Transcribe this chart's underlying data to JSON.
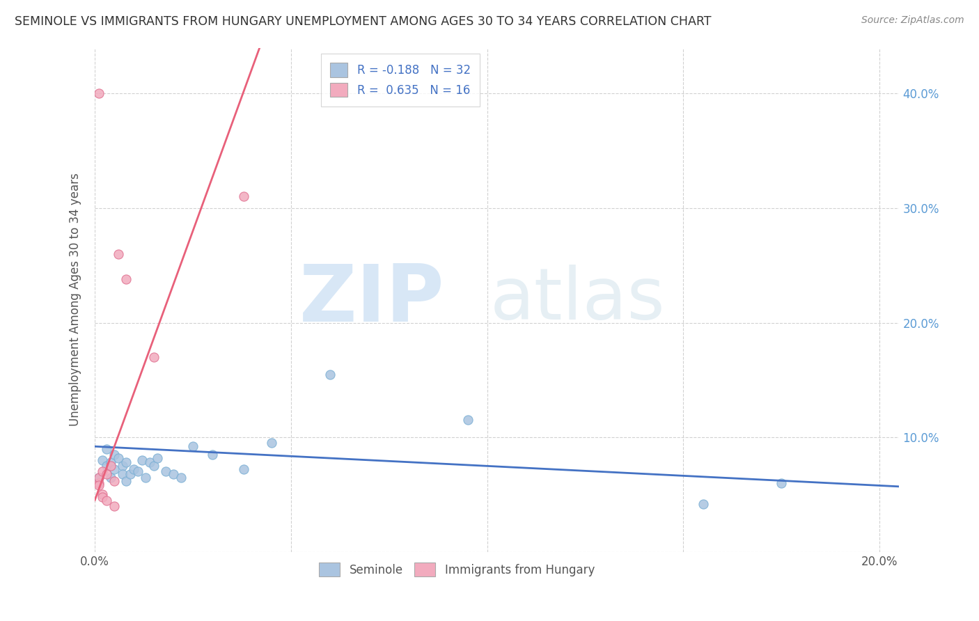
{
  "title": "SEMINOLE VS IMMIGRANTS FROM HUNGARY UNEMPLOYMENT AMONG AGES 30 TO 34 YEARS CORRELATION CHART",
  "source": "Source: ZipAtlas.com",
  "ylabel": "Unemployment Among Ages 30 to 34 years",
  "xlim": [
    0.0,
    0.205
  ],
  "ylim": [
    0.0,
    0.44
  ],
  "xticks": [
    0.0,
    0.05,
    0.1,
    0.15,
    0.2
  ],
  "yticks": [
    0.0,
    0.1,
    0.2,
    0.3,
    0.4
  ],
  "seminole_color": "#aac4e0",
  "hungary_color": "#f2abbe",
  "seminole_edge": "#7aafd4",
  "hungary_edge": "#e07090",
  "trend_blue": "#4472c4",
  "trend_pink": "#e8607a",
  "legend_r1": "R = -0.188",
  "legend_n1": "N = 32",
  "legend_r2": "R =  0.635",
  "legend_n2": "N = 16",
  "watermark_zip": "ZIP",
  "watermark_atlas": "atlas",
  "background": "#ffffff",
  "grid_color": "#cccccc",
  "seminole_x": [
    0.001,
    0.002,
    0.003,
    0.003,
    0.004,
    0.004,
    0.005,
    0.005,
    0.006,
    0.007,
    0.007,
    0.008,
    0.008,
    0.009,
    0.01,
    0.011,
    0.012,
    0.013,
    0.014,
    0.015,
    0.016,
    0.018,
    0.02,
    0.022,
    0.025,
    0.03,
    0.038,
    0.045,
    0.06,
    0.095,
    0.155,
    0.175
  ],
  "seminole_y": [
    0.065,
    0.08,
    0.075,
    0.09,
    0.078,
    0.065,
    0.072,
    0.085,
    0.082,
    0.075,
    0.068,
    0.078,
    0.062,
    0.068,
    0.072,
    0.07,
    0.08,
    0.065,
    0.078,
    0.075,
    0.082,
    0.07,
    0.068,
    0.065,
    0.092,
    0.085,
    0.072,
    0.095,
    0.155,
    0.115,
    0.042,
    0.06
  ],
  "hungary_x": [
    0.001,
    0.001,
    0.001,
    0.002,
    0.002,
    0.002,
    0.003,
    0.003,
    0.004,
    0.005,
    0.005,
    0.006,
    0.008,
    0.015,
    0.038,
    0.001
  ],
  "hungary_y": [
    0.06,
    0.065,
    0.058,
    0.07,
    0.05,
    0.048,
    0.068,
    0.045,
    0.075,
    0.062,
    0.04,
    0.26,
    0.238,
    0.17,
    0.31,
    0.4
  ],
  "blue_trend_x0": 0.0,
  "blue_trend_y0": 0.092,
  "blue_trend_x1": 0.205,
  "blue_trend_y1": 0.057,
  "pink_trend_x0": 0.0,
  "pink_trend_y0": 0.045,
  "pink_trend_x1": 0.042,
  "pink_trend_y1": 0.44
}
